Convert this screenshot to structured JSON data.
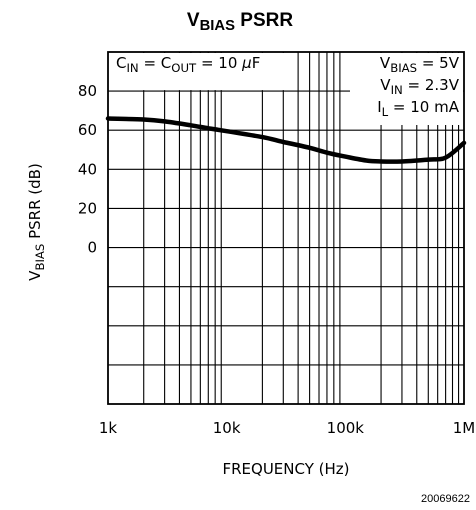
{
  "chart_data": {
    "type": "line",
    "title": {
      "main": "V",
      "sub": "BIAS",
      "rest": " PSRR"
    },
    "xlabel": "FREQUENCY (Hz)",
    "ylabel": {
      "main": "V",
      "sub": "BIAS",
      "rest": "  PSRR (dB)"
    },
    "x_scale": "log",
    "xlim": [
      1000,
      1000000
    ],
    "x_ticks": [
      {
        "value": 1000,
        "label": "1k"
      },
      {
        "value": 10000,
        "label": "10k"
      },
      {
        "value": 100000,
        "label": "100k"
      },
      {
        "value": 1000000,
        "label": "1M"
      }
    ],
    "ylim": [
      -80,
      100
    ],
    "y_ticks": [
      {
        "value": 80,
        "label": "80"
      },
      {
        "value": 60,
        "label": "60"
      },
      {
        "value": 40,
        "label": "40"
      },
      {
        "value": 20,
        "label": "20"
      },
      {
        "value": 0,
        "label": "0"
      }
    ],
    "grid": true,
    "series": [
      {
        "x": [
          1000,
          2000,
          3000,
          5000,
          7000,
          10000,
          20000,
          30000,
          50000,
          70000,
          100000,
          150000,
          200000,
          300000,
          500000,
          700000,
          1000000
        ],
        "y": [
          66,
          65.5,
          64.5,
          62.5,
          61,
          59.5,
          56.5,
          54,
          51,
          48.5,
          46.5,
          44.5,
          44,
          44,
          45,
          46,
          53.5
        ]
      }
    ],
    "annotations": {
      "left": [
        [
          {
            "text": "C",
            "sub": false
          },
          {
            "text": "IN",
            "sub": true
          },
          {
            "text": " = C",
            "sub": false
          },
          {
            "text": "OUT",
            "sub": true
          },
          {
            "text": " = 10 ",
            "sub": false
          },
          {
            "text": "µ",
            "sub": false,
            "italic": true
          },
          {
            "text": "F",
            "sub": false
          }
        ]
      ],
      "right": [
        [
          {
            "text": "V",
            "sub": false
          },
          {
            "text": "BIAS",
            "sub": true
          },
          {
            "text": " = 5V",
            "sub": false
          }
        ],
        [
          {
            "text": "V",
            "sub": false
          },
          {
            "text": "IN",
            "sub": true
          },
          {
            "text": " = 2.3V",
            "sub": false
          }
        ],
        [
          {
            "text": "I",
            "sub": false
          },
          {
            "text": "L",
            "sub": true
          },
          {
            "text": " = 10 mA",
            "sub": false
          }
        ]
      ]
    },
    "figure_id": "20069622"
  }
}
